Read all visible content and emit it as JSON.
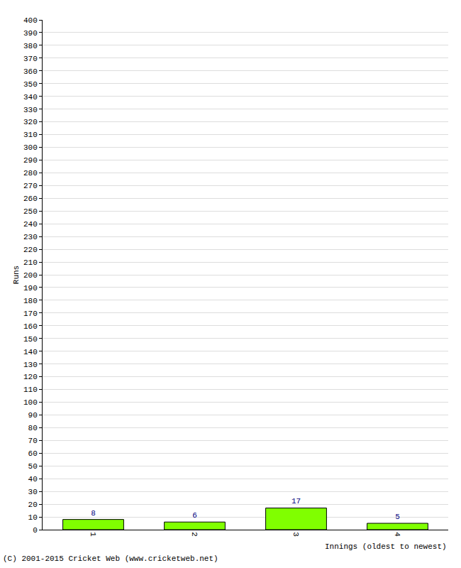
{
  "chart_data": {
    "type": "bar",
    "categories": [
      "1",
      "2",
      "3",
      "4"
    ],
    "values": [
      8,
      6,
      17,
      5
    ],
    "color": "#80ff00",
    "x_label": "Innings (oldest to newest)",
    "y_label": "Runs",
    "annotations": [
      "(C) 2001-2015 Cricket Web (www.cricketweb.net)"
    ],
    "ylim": [
      0,
      400
    ],
    "yticks": [
      0,
      10,
      20,
      30,
      40,
      50,
      60,
      70,
      80,
      90,
      100,
      110,
      120,
      130,
      140,
      150,
      160,
      170,
      180,
      190,
      200,
      210,
      220,
      230,
      240,
      250,
      260,
      270,
      280,
      290,
      300,
      310,
      320,
      330,
      340,
      350,
      360,
      370,
      380,
      390,
      400
    ],
    "grid": true,
    "data_labels": true
  }
}
